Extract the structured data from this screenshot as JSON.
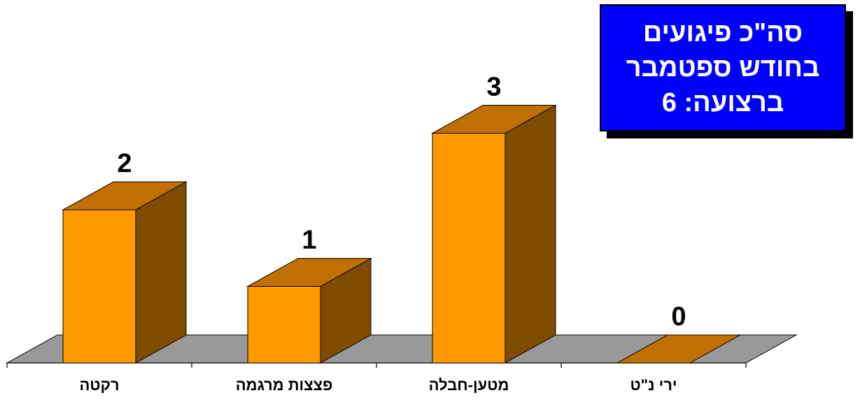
{
  "chart_data": {
    "type": "bar",
    "categories": [
      "רקטה",
      "פצצות מרגמה",
      "מטען-חבלה",
      "ירי נ\"ט"
    ],
    "values": [
      2,
      1,
      3,
      0
    ],
    "data_labels": [
      "2",
      "1",
      "3",
      "0"
    ],
    "ylim": [
      0,
      3
    ],
    "legend": "none",
    "grid": false,
    "style": "3d-column"
  },
  "info_box": {
    "line1": "סה\"כ פיגועים",
    "line2": "בחודש ספטמבר",
    "line3": "ברצועה: 6"
  },
  "colors": {
    "bar_front": "#ff9900",
    "bar_top": "#c07000",
    "bar_side": "#804c00",
    "floor": "#999999",
    "box_bg": "#0000ff",
    "box_text": "#ffffff"
  }
}
